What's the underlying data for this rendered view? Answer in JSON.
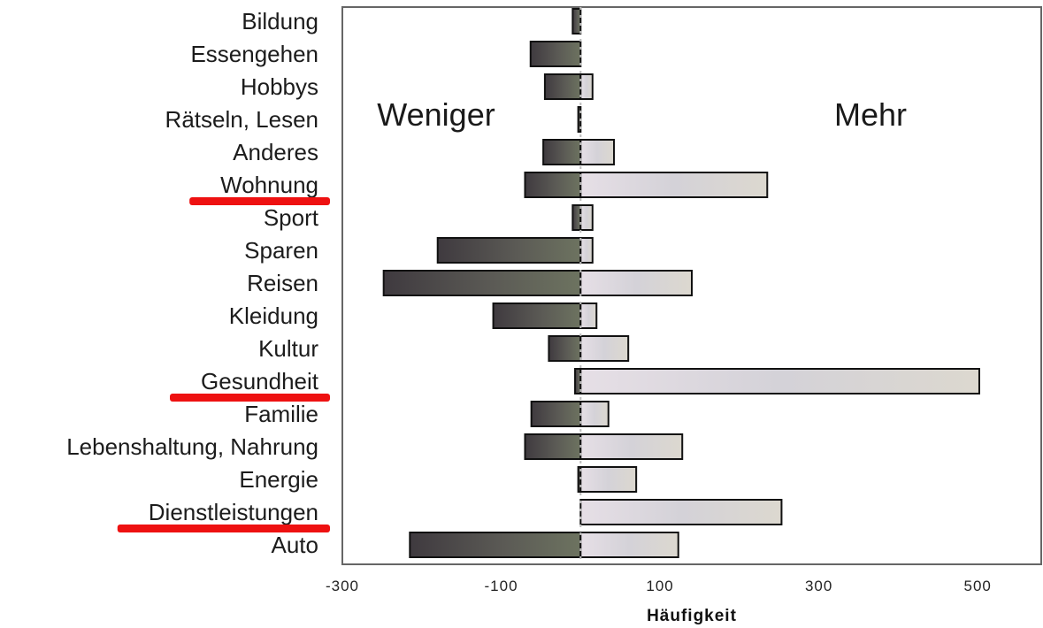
{
  "chart_data": {
    "type": "bar",
    "orientation": "horizontal",
    "diverging": true,
    "categories": [
      "Bildung",
      "Essengehen",
      "Hobbys",
      "Rätseln, Lesen",
      "Anderes",
      "Wohnung",
      "Sport",
      "Sparen",
      "Reisen",
      "Kleidung",
      "Kultur",
      "Gesundheit",
      "Familie",
      "Lebenshaltung, Nahrung",
      "Energie",
      "Dienstleistungen",
      "Auto"
    ],
    "series": [
      {
        "name": "Weniger",
        "values": [
          -10,
          -63,
          -45,
          -3,
          -47,
          -70,
          -10,
          -180,
          -248,
          -110,
          -40,
          -7,
          -62,
          -70,
          -3,
          0,
          -215
        ]
      },
      {
        "name": "Mehr",
        "values": [
          0,
          0,
          15,
          0,
          42,
          235,
          15,
          15,
          140,
          20,
          60,
          502,
          35,
          128,
          70,
          253,
          123
        ]
      }
    ],
    "series_colors": [
      "#6e6a6c",
      "#d8d3d8"
    ],
    "xlabel": "Häufigkeit",
    "ylabel": "",
    "xlim": [
      -300,
      580
    ],
    "xticks": [
      -300,
      -100,
      100,
      300,
      500
    ],
    "xtick_labels": [
      "-300",
      "-100",
      "100",
      "300",
      "500"
    ],
    "annotations": [
      "Weniger",
      "Mehr"
    ],
    "highlighted_categories": [
      "Wohnung",
      "Gesundheit",
      "Dienstleistungen"
    ],
    "highlight_color": "#ee1111",
    "legend": "none",
    "grid": false
  }
}
